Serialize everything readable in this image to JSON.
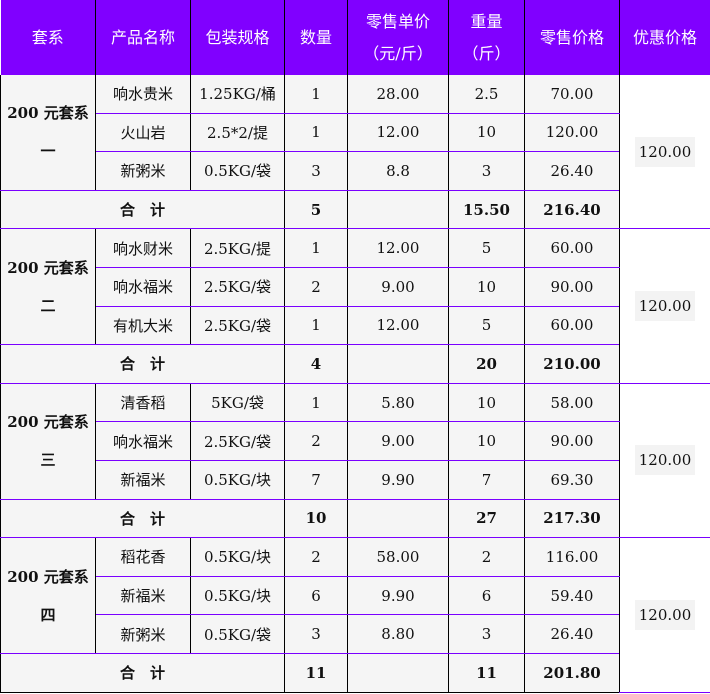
{
  "header": [
    "套系",
    "产品名称",
    "包装规格",
    "数量",
    "零售单价\n（元/斤）",
    "重量\n（斤）",
    "零售价格",
    "优惠价格"
  ],
  "total_label": "合　计",
  "colors": {
    "header_bg": "#8000ff",
    "row_divider": "#7a00ff",
    "cell_bg": "#f5f5f5"
  },
  "groups": [
    {
      "suite": "200 元套系\n一",
      "discount": "120.00",
      "items": [
        [
          "响水贵米",
          "1.25KG/桶",
          "1",
          "28.00",
          "2.5",
          "70.00"
        ],
        [
          "火山岩",
          "2.5*2/提",
          "1",
          "12.00",
          "10",
          "120.00"
        ],
        [
          "新粥米",
          "0.5KG/袋",
          "3",
          "8.8",
          "3",
          "26.40"
        ]
      ],
      "total": {
        "qty": "5",
        "weight": "15.50",
        "price": "216.40"
      }
    },
    {
      "suite": "200 元套系\n二",
      "discount": "120.00",
      "items": [
        [
          "响水财米",
          "2.5KG/提",
          "1",
          "12.00",
          "5",
          "60.00"
        ],
        [
          "响水福米",
          "2.5KG/袋",
          "2",
          "9.00",
          "10",
          "90.00"
        ],
        [
          "有机大米",
          "2.5KG/袋",
          "1",
          "12.00",
          "5",
          "60.00"
        ]
      ],
      "total": {
        "qty": "4",
        "weight": "20",
        "price": "210.00"
      }
    },
    {
      "suite": "200 元套系\n三",
      "discount": "120.00",
      "items": [
        [
          "清香稻",
          "5KG/袋",
          "1",
          "5.80",
          "10",
          "58.00"
        ],
        [
          "响水福米",
          "2.5KG/袋",
          "2",
          "9.00",
          "10",
          "90.00"
        ],
        [
          "新福米",
          "0.5KG/块",
          "7",
          "9.90",
          "7",
          "69.30"
        ]
      ],
      "total": {
        "qty": "10",
        "weight": "27",
        "price": "217.30"
      }
    },
    {
      "suite": "200 元套系\n四",
      "discount": "120.00",
      "items": [
        [
          "稻花香",
          "0.5KG/块",
          "2",
          "58.00",
          "2",
          "116.00"
        ],
        [
          "新福米",
          "0.5KG/块",
          "6",
          "9.90",
          "6",
          "59.40"
        ],
        [
          "新粥米",
          "0.5KG/袋",
          "3",
          "8.80",
          "3",
          "26.40"
        ]
      ],
      "total": {
        "qty": "11",
        "weight": "11",
        "price": "201.80"
      }
    }
  ]
}
